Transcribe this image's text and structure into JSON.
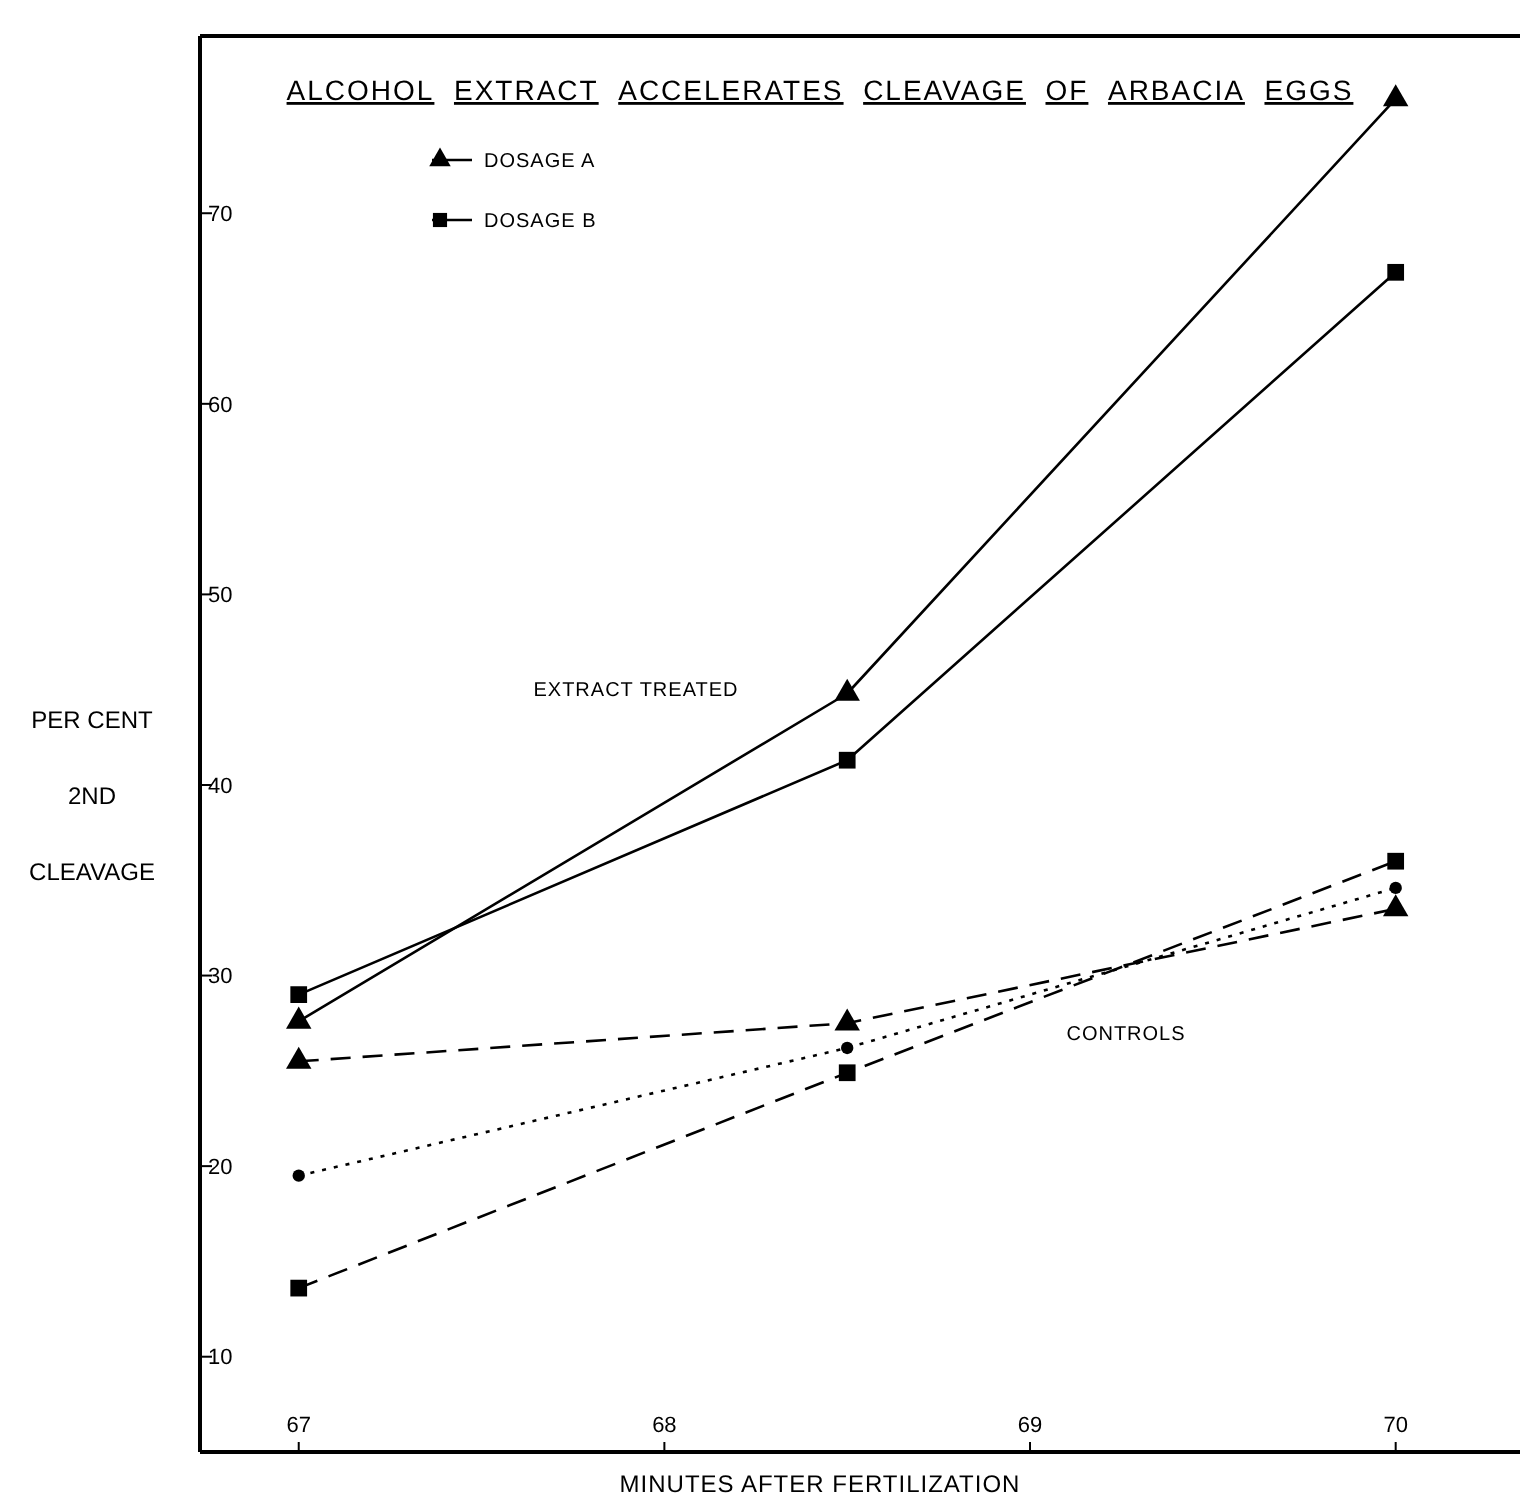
{
  "chart_data": {
    "type": "line",
    "title": "ALCOHOL EXTRACT ACCELERATES CLEAVAGE OF ARBACIA EGGS",
    "xlabel": "MINUTES AFTER FERTILIZATION",
    "ylabel": "PER CENT 2ND CLEAVAGE",
    "x": [
      67,
      68.5,
      70
    ],
    "series": [
      {
        "name": "DOSAGE A",
        "color": "#000000",
        "values": [
          27.6,
          44.8,
          76.0
        ],
        "marker": "triangle",
        "line_style": "solid"
      },
      {
        "name": "DOSAGE B",
        "color": "#000000",
        "values": [
          29.0,
          41.3,
          66.9
        ],
        "marker": "square",
        "line_style": "solid"
      },
      {
        "color": "#000000",
        "values": [
          25.5,
          27.5,
          33.5
        ],
        "marker": "triangle",
        "line_style": "dashed"
      },
      {
        "color": "#000000",
        "values": [
          19.5,
          26.2,
          34.6
        ],
        "marker": "circle",
        "line_style": "dotted"
      },
      {
        "color": "#000000",
        "values": [
          13.6,
          24.9,
          36.0
        ],
        "marker": "square",
        "line_style": "dashed"
      }
    ],
    "xlim": [
      66.73,
      70.34
    ],
    "ylim": [
      5,
      79.3
    ],
    "xticks": [
      67,
      68,
      69,
      70
    ],
    "yticks": [
      10,
      20,
      30,
      40,
      50,
      60,
      70
    ],
    "grid": false,
    "legend": "top left",
    "annotations": [
      "EXTRACT TREATED",
      "CONTROLS"
    ]
  }
}
